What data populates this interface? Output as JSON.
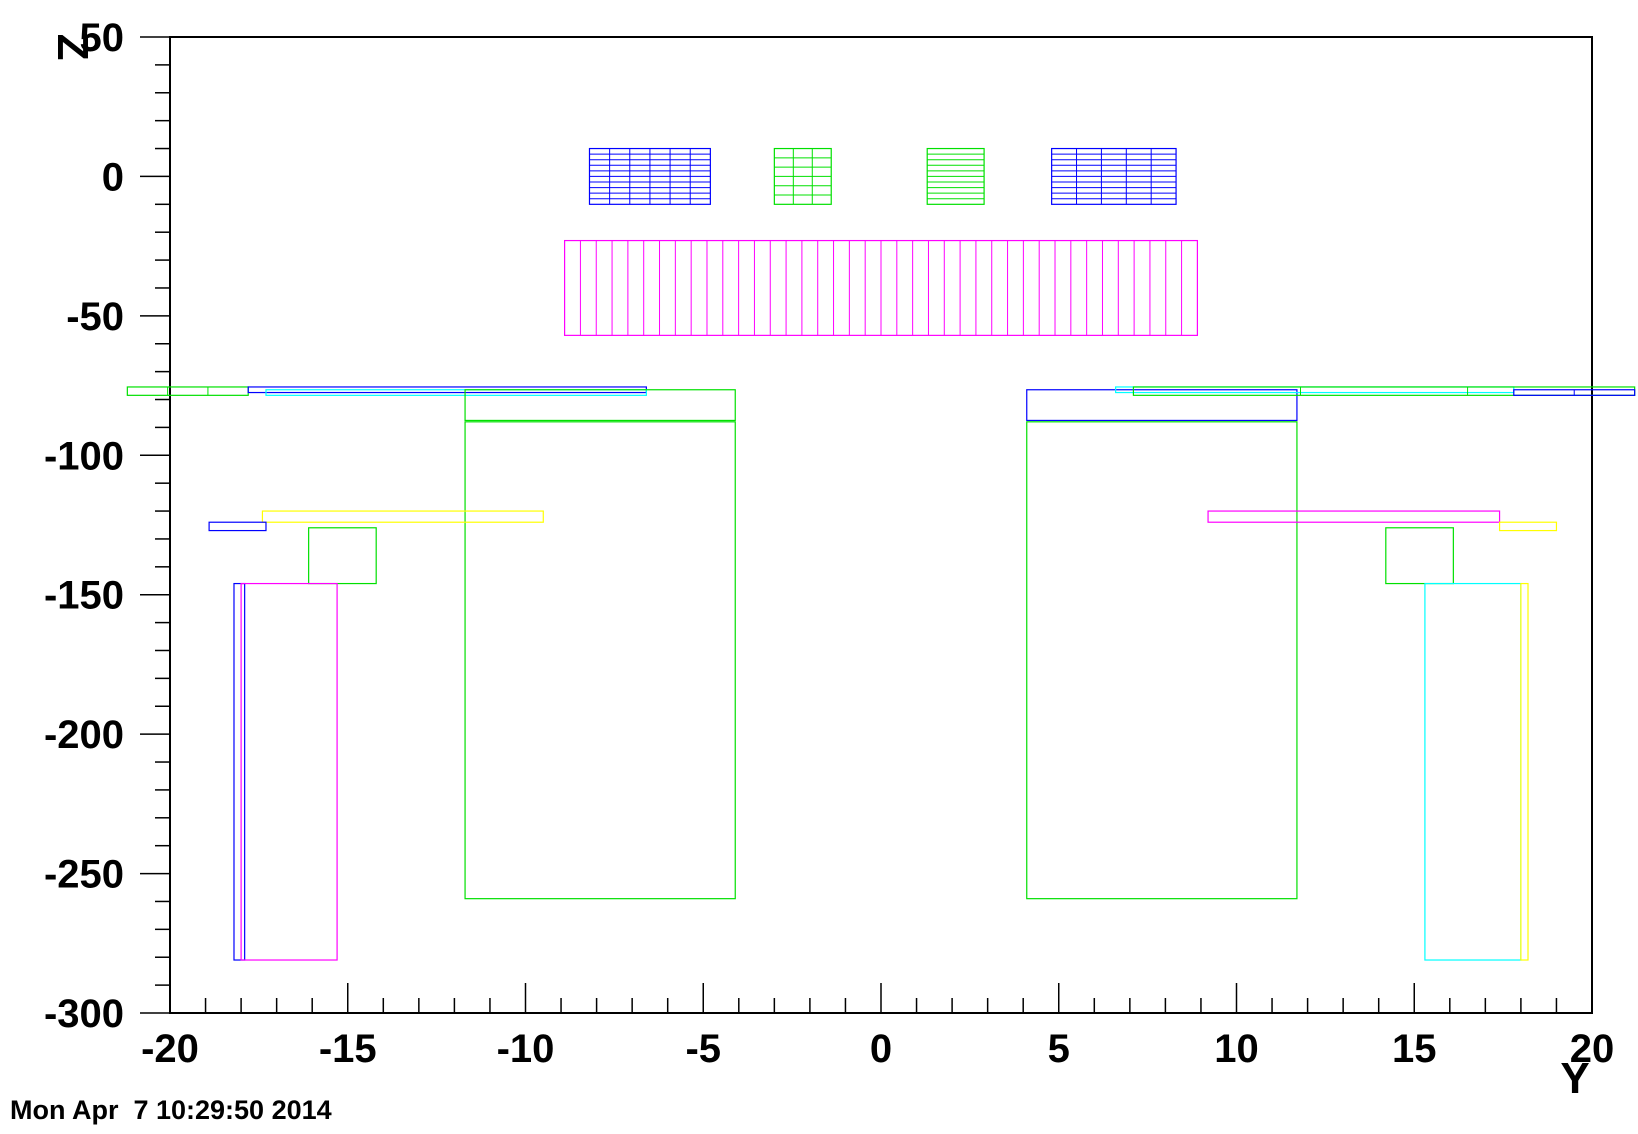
{
  "timestamp": "Mon Apr  7 10:29:50 2014",
  "chart_data": {
    "type": "geometry-rectangles",
    "xlabel": "Y",
    "ylabel": "Z",
    "xlim": [
      -20,
      20
    ],
    "ylim": [
      -300,
      50
    ],
    "xticks": [
      -20,
      -15,
      -10,
      -5,
      0,
      5,
      10,
      15,
      20
    ],
    "xtick_labels": [
      "-20",
      "-15",
      "-10",
      "-5",
      "0",
      "5",
      "10",
      "15",
      "20"
    ],
    "yticks": [
      50,
      0,
      -50,
      -100,
      -150,
      -200,
      -250,
      -300
    ],
    "ytick_labels": [
      "50",
      "0",
      "-50",
      "-100",
      "-150",
      "-200",
      "-250",
      "-300"
    ],
    "grid": false,
    "rects": [
      {
        "color": "#0000ff",
        "y0": -8.2,
        "y1": -4.8,
        "z0": -10,
        "z1": 10,
        "rows": 10,
        "cols": 6
      },
      {
        "color": "#00e000",
        "y0": -3.0,
        "y1": -1.4,
        "z0": -10,
        "z1": 10,
        "rows": 6,
        "cols": 3
      },
      {
        "color": "#00e000",
        "y0": 1.3,
        "y1": 2.9,
        "z0": -10,
        "z1": 10,
        "rows": 10,
        "cols": 1
      },
      {
        "color": "#0000ff",
        "y0": 4.8,
        "y1": 8.3,
        "z0": -10,
        "z1": 10,
        "rows": 10,
        "cols": 5
      },
      {
        "color": "#ff00ff",
        "y0": -8.9,
        "y1": 8.9,
        "z0": -57,
        "z1": -23,
        "rows": 1,
        "cols": 40
      },
      {
        "color": "#00e000",
        "y0": -21.2,
        "y1": -17.8,
        "z0": -78.5,
        "z1": -75.5,
        "rows": 1,
        "cols": 3
      },
      {
        "color": "#0000ff",
        "y0": -17.8,
        "y1": -6.6,
        "z0": -77.5,
        "z1": -75.5,
        "rows": 1,
        "cols": 1
      },
      {
        "color": "#00ffff",
        "y0": -17.3,
        "y1": -6.6,
        "z0": -78.5,
        "z1": -76.5,
        "rows": 1,
        "cols": 1
      },
      {
        "color": "#00e000",
        "y0": -11.7,
        "y1": -4.1,
        "z0": -87.5,
        "z1": -76.5,
        "rows": 1,
        "cols": 1
      },
      {
        "color": "#00e000",
        "y0": -11.7,
        "y1": -4.1,
        "z0": -259,
        "z1": -88,
        "rows": 1,
        "cols": 1
      },
      {
        "color": "#0000ff",
        "y0": 4.1,
        "y1": 11.7,
        "z0": -87.5,
        "z1": -76.5,
        "rows": 1,
        "cols": 1
      },
      {
        "color": "#00e000",
        "y0": 4.1,
        "y1": 11.7,
        "z0": -259,
        "z1": -88,
        "rows": 1,
        "cols": 1
      },
      {
        "color": "#00ffff",
        "y0": 6.6,
        "y1": 17.8,
        "z0": -77.5,
        "z1": -75.5,
        "rows": 1,
        "cols": 1
      },
      {
        "color": "#00e000",
        "y0": 7.1,
        "y1": 21.2,
        "z0": -78.5,
        "z1": -75.5,
        "rows": 1,
        "cols": 3
      },
      {
        "color": "#0000ff",
        "y0": 17.8,
        "y1": 21.2,
        "z0": -78.5,
        "z1": -76.5,
        "rows": 1,
        "cols": 2
      },
      {
        "color": "#ffff00",
        "y0": -17.4,
        "y1": -9.5,
        "z0": -124,
        "z1": -120,
        "rows": 1,
        "cols": 1
      },
      {
        "color": "#0000ff",
        "y0": -18.9,
        "y1": -17.3,
        "z0": -127,
        "z1": -124,
        "rows": 1,
        "cols": 1
      },
      {
        "color": "#00e000",
        "y0": -16.1,
        "y1": -14.2,
        "z0": -146,
        "z1": -126,
        "rows": 1,
        "cols": 1
      },
      {
        "color": "#ff00ff",
        "y0": 9.2,
        "y1": 17.4,
        "z0": -124,
        "z1": -120,
        "rows": 1,
        "cols": 1
      },
      {
        "color": "#ffff00",
        "y0": 17.4,
        "y1": 19.0,
        "z0": -127,
        "z1": -124,
        "rows": 1,
        "cols": 1
      },
      {
        "color": "#00e000",
        "y0": 14.2,
        "y1": 16.1,
        "z0": -146,
        "z1": -126,
        "rows": 1,
        "cols": 1
      },
      {
        "color": "#0000ff",
        "y0": -18.2,
        "y1": -17.9,
        "z0": -281,
        "z1": -146,
        "rows": 1,
        "cols": 1
      },
      {
        "color": "#ff00ff",
        "y0": -18.0,
        "y1": -15.3,
        "z0": -281,
        "z1": -146,
        "rows": 1,
        "cols": 1
      },
      {
        "color": "#00ffff",
        "y0": 15.3,
        "y1": 18.0,
        "z0": -281,
        "z1": -146,
        "rows": 1,
        "cols": 1
      },
      {
        "color": "#ffff00",
        "y0": 18.0,
        "y1": 18.2,
        "z0": -281,
        "z1": -146,
        "rows": 1,
        "cols": 1
      }
    ]
  }
}
